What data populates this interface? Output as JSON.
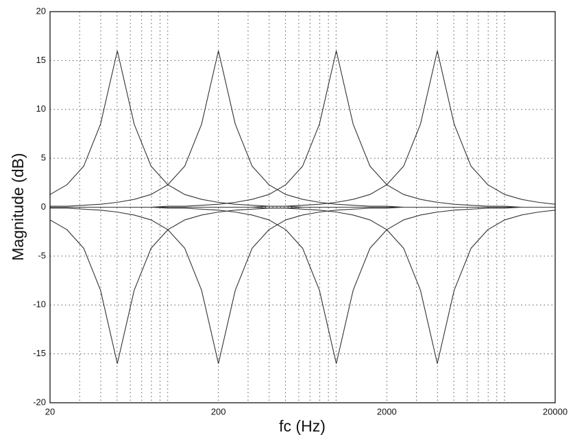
{
  "chart_data": {
    "type": "line",
    "x_label": "fc (Hz)",
    "y_label": "Magnitude (dB)",
    "xscale": "log",
    "grid": true,
    "xlim": [
      20,
      20000
    ],
    "ylim": [
      -20,
      20
    ],
    "xticks": [
      20,
      200,
      2000,
      20000
    ],
    "xminor": [
      30,
      40,
      50,
      60,
      70,
      80,
      90,
      100,
      300,
      400,
      500,
      600,
      700,
      800,
      900,
      1000,
      3000,
      4000,
      5000,
      6000,
      7000,
      8000,
      9000,
      10000
    ],
    "yticks": [
      -20,
      -15,
      -10,
      -5,
      0,
      5,
      10,
      15,
      20
    ],
    "x": [
      20,
      25.2,
      31.7,
      39.9,
      50.2,
      63.2,
      79.6,
      100.2,
      126.2,
      158.9,
      200,
      251.8,
      317,
      399.1,
      502.4,
      632.5,
      796.2,
      1002.4,
      1261.9,
      1588.7,
      2000,
      2517.9,
      3169.8,
      3990.5,
      5023.8,
      6324.6,
      7962.1,
      10023.7,
      12619.1,
      15886.6,
      20000
    ],
    "series": [
      {
        "color": "#333333",
        "values": [
          1.3,
          2.3,
          4.2,
          8.5,
          16,
          8.5,
          4.2,
          2.3,
          1.3,
          0.8,
          0.5,
          0.3,
          0.2,
          0.1,
          0.1,
          0,
          0,
          0,
          0,
          0,
          0,
          0,
          0,
          0,
          0,
          0,
          0,
          0,
          0,
          0,
          0
        ]
      },
      {
        "color": "#333333",
        "values": [
          0.1,
          0.1,
          0.2,
          0.3,
          0.5,
          0.8,
          1.3,
          2.3,
          4.2,
          8.5,
          16,
          8.5,
          4.2,
          2.3,
          1.3,
          0.8,
          0.5,
          0.3,
          0.2,
          0.1,
          0.1,
          0,
          0,
          0,
          0,
          0,
          0,
          0,
          0,
          0,
          0
        ]
      },
      {
        "color": "#333333",
        "values": [
          0,
          0,
          0,
          0,
          0,
          0,
          0,
          0.1,
          0.1,
          0.2,
          0.3,
          0.5,
          0.8,
          1.3,
          2.3,
          4.2,
          8.5,
          16,
          8.5,
          4.2,
          2.3,
          1.3,
          0.8,
          0.5,
          0.3,
          0.2,
          0.1,
          0.1,
          0,
          0,
          0
        ]
      },
      {
        "color": "#333333",
        "values": [
          0,
          0,
          0,
          0,
          0,
          0,
          0,
          0,
          0,
          0,
          0,
          0,
          0,
          0.1,
          0.1,
          0.2,
          0.3,
          0.5,
          0.8,
          1.3,
          2.3,
          4.2,
          8.5,
          16,
          8.5,
          4.2,
          2.3,
          1.3,
          0.8,
          0.5,
          0.3
        ]
      },
      {
        "color": "#333333",
        "values": [
          -1.3,
          -2.3,
          -4.2,
          -8.5,
          -16,
          -8.5,
          -4.2,
          -2.3,
          -1.3,
          -0.8,
          -0.5,
          -0.3,
          -0.2,
          -0.1,
          -0.1,
          0,
          0,
          0,
          0,
          0,
          0,
          0,
          0,
          0,
          0,
          0,
          0,
          0,
          0,
          0,
          0
        ]
      },
      {
        "color": "#333333",
        "values": [
          -0.1,
          -0.1,
          -0.2,
          -0.3,
          -0.5,
          -0.8,
          -1.3,
          -2.3,
          -4.2,
          -8.5,
          -16,
          -8.5,
          -4.2,
          -2.3,
          -1.3,
          -0.8,
          -0.5,
          -0.3,
          -0.2,
          -0.1,
          -0.1,
          0,
          0,
          0,
          0,
          0,
          0,
          0,
          0,
          0,
          0
        ]
      },
      {
        "color": "#333333",
        "values": [
          0,
          0,
          0,
          0,
          0,
          0,
          0,
          -0.1,
          -0.1,
          -0.2,
          -0.3,
          -0.5,
          -0.8,
          -1.3,
          -2.3,
          -4.2,
          -8.5,
          -16,
          -8.5,
          -4.2,
          -2.3,
          -1.3,
          -0.8,
          -0.5,
          -0.3,
          -0.2,
          -0.1,
          -0.1,
          0,
          0,
          0
        ]
      },
      {
        "color": "#333333",
        "values": [
          0,
          0,
          0,
          0,
          0,
          0,
          0,
          0,
          0,
          0,
          0,
          0,
          0,
          -0.1,
          -0.1,
          -0.2,
          -0.3,
          -0.5,
          -0.8,
          -1.3,
          -2.3,
          -4.2,
          -8.5,
          -16,
          -8.5,
          -4.2,
          -2.3,
          -1.3,
          -0.8,
          -0.5,
          -0.3
        ]
      }
    ]
  }
}
